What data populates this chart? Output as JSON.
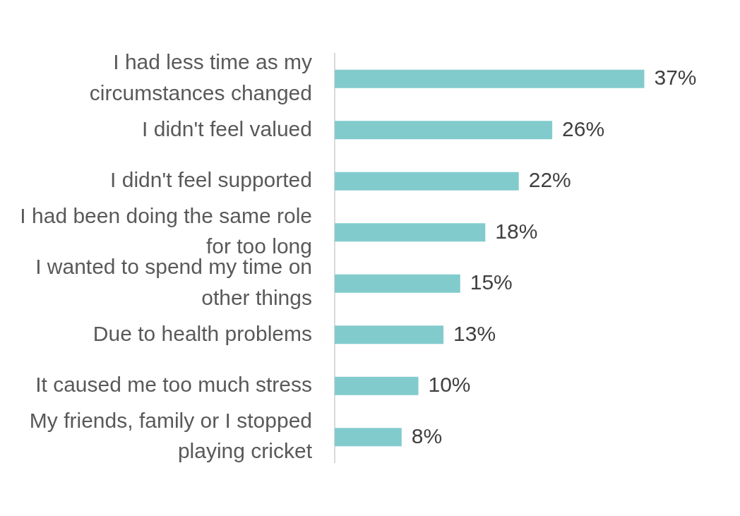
{
  "chart_data": {
    "type": "bar",
    "orientation": "horizontal",
    "categories": [
      "I had less time as my circumstances changed",
      "I didn't feel valued",
      "I didn't feel supported",
      "I had been doing the same role for too long",
      "I wanted to spend my time on other things",
      "Due to health problems",
      "It caused me too much stress",
      "My friends, family or I stopped playing cricket"
    ],
    "values": [
      37,
      26,
      22,
      18,
      15,
      13,
      10,
      8
    ],
    "value_labels": [
      "37%",
      "26%",
      "22%",
      "18%",
      "15%",
      "13%",
      "10%",
      "8%"
    ],
    "color": "#82cbcd",
    "grid": false,
    "legend": false
  }
}
